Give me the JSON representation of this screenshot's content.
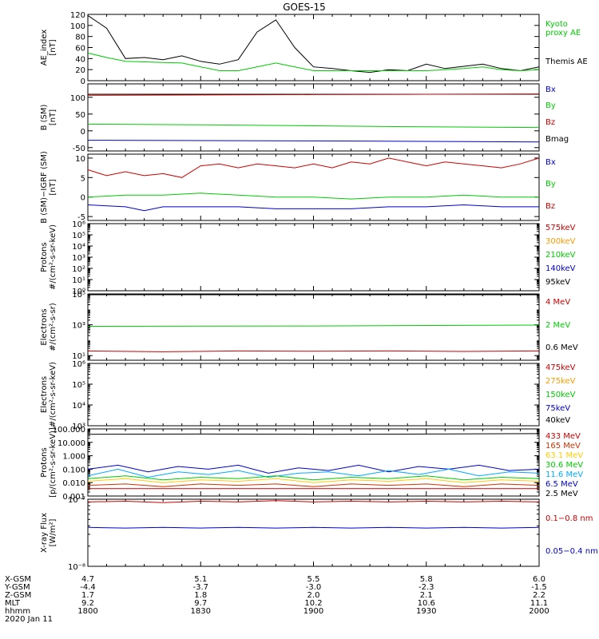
{
  "title": "GOES-15",
  "time_axis": {
    "tick_labels": [
      "1800",
      "1830",
      "1900",
      "1930",
      "2000"
    ],
    "rows": [
      {
        "label": "X-GSM",
        "values": [
          "4.7",
          "5.1",
          "5.5",
          "5.8",
          "6.0"
        ]
      },
      {
        "label": "Y-GSM",
        "values": [
          "-4.4",
          "-3.7",
          "-3.0",
          "-2.3",
          "-1.5"
        ]
      },
      {
        "label": "Z-GSM",
        "values": [
          "1.7",
          "1.8",
          "2.0",
          "2.1",
          "2.2"
        ]
      },
      {
        "label": "MLT",
        "values": [
          "9.2",
          "9.7",
          "10.2",
          "10.6",
          "11.1"
        ]
      },
      {
        "label": "hhmm",
        "values": [
          "1800",
          "1830",
          "1900",
          "1930",
          "2000"
        ]
      }
    ],
    "date": "2020 Jan 11"
  },
  "chart_data": [
    {
      "id": "ae",
      "type": "line",
      "ylabel": "AE_index\n[nT]",
      "yscale": "linear",
      "ylim": [
        0,
        120
      ],
      "ticks": [
        0,
        20,
        40,
        60,
        80,
        100,
        120
      ],
      "tick_labels": [
        "0",
        "20",
        "40",
        "60",
        "80",
        "100",
        "120"
      ],
      "legend": [
        {
          "text": "Kyoto\nproxy AE",
          "color": "#00cc00"
        },
        {
          "text": "Themis AE",
          "color": "#000000"
        }
      ],
      "series": [
        {
          "name": "Themis AE",
          "color": "#000000",
          "x": [
            0,
            5,
            10,
            15,
            20,
            25,
            30,
            35,
            40,
            45,
            50,
            55,
            60,
            65,
            70,
            75,
            80,
            85,
            90,
            95,
            100,
            105,
            110,
            115,
            120
          ],
          "values": [
            118,
            95,
            40,
            42,
            38,
            45,
            35,
            30,
            38,
            88,
            110,
            60,
            25,
            22,
            18,
            15,
            20,
            18,
            30,
            22,
            26,
            30,
            22,
            18,
            25
          ]
        },
        {
          "name": "Kyoto proxy AE",
          "color": "#00cc00",
          "x": [
            0,
            5,
            10,
            15,
            20,
            25,
            30,
            35,
            40,
            45,
            50,
            55,
            60,
            65,
            70,
            75,
            80,
            85,
            90,
            95,
            100,
            105,
            110,
            115,
            120
          ],
          "values": [
            50,
            42,
            35,
            34,
            33,
            32,
            25,
            18,
            18,
            25,
            32,
            25,
            18,
            18,
            18,
            18,
            18,
            18,
            18,
            20,
            22,
            25,
            20,
            18,
            20
          ]
        }
      ]
    },
    {
      "id": "bsm",
      "type": "line",
      "ylabel": "B (SM)\n[nT]",
      "yscale": "linear",
      "ylim": [
        -60,
        140
      ],
      "ticks": [
        -50,
        0,
        50,
        100
      ],
      "tick_labels": [
        "-50",
        "0",
        "50",
        "100"
      ],
      "legend": [
        {
          "text": "Bx",
          "color": "#0000cc"
        },
        {
          "text": "By",
          "color": "#00cc00"
        },
        {
          "text": "Bz",
          "color": "#cc0000"
        },
        {
          "text": "Bmag",
          "color": "#000000"
        }
      ],
      "series": [
        {
          "name": "Bmag",
          "color": "#000000",
          "x": [
            0,
            120
          ],
          "values": [
            109,
            109
          ]
        },
        {
          "name": "Bz",
          "color": "#cc0000",
          "x": [
            0,
            30,
            60,
            90,
            120
          ],
          "values": [
            106,
            107,
            108,
            109,
            110
          ]
        },
        {
          "name": "By",
          "color": "#00cc00",
          "x": [
            0,
            30,
            60,
            90,
            120
          ],
          "values": [
            20,
            18,
            15,
            12,
            10
          ]
        },
        {
          "name": "Bx",
          "color": "#0000cc",
          "x": [
            0,
            60,
            120
          ],
          "values": [
            -28,
            -30,
            -33
          ]
        }
      ]
    },
    {
      "id": "bigrf",
      "type": "line",
      "ylabel": "B (SM)−IGRF (SM)\n[nT]",
      "yscale": "linear",
      "ylim": [
        -6,
        11
      ],
      "ticks": [
        -5,
        0,
        5,
        10
      ],
      "tick_labels": [
        "-5",
        "0",
        "5",
        "10"
      ],
      "legend": [
        {
          "text": "Bx",
          "color": "#0000cc"
        },
        {
          "text": "By",
          "color": "#00cc00"
        },
        {
          "text": "Bz",
          "color": "#cc0000"
        }
      ],
      "series": [
        {
          "name": "Bz",
          "color": "#cc0000",
          "x": [
            0,
            5,
            10,
            15,
            20,
            25,
            30,
            35,
            40,
            45,
            50,
            55,
            60,
            65,
            70,
            75,
            80,
            85,
            90,
            95,
            100,
            105,
            110,
            115,
            120
          ],
          "values": [
            7,
            5.5,
            6.5,
            5.5,
            6,
            5,
            8,
            8.5,
            7.5,
            8.5,
            8,
            7.5,
            8.5,
            7.5,
            9,
            8.5,
            10,
            9,
            8,
            9,
            8.5,
            8,
            7.5,
            8.5,
            10
          ]
        },
        {
          "name": "By",
          "color": "#00cc00",
          "x": [
            0,
            10,
            20,
            30,
            40,
            50,
            60,
            70,
            80,
            90,
            100,
            110,
            120
          ],
          "values": [
            0,
            0.5,
            0.5,
            1,
            0.5,
            0,
            0,
            -0.5,
            0,
            0,
            0.5,
            0,
            0
          ]
        },
        {
          "name": "Bx",
          "color": "#0000cc",
          "x": [
            0,
            10,
            15,
            20,
            30,
            40,
            50,
            60,
            70,
            80,
            90,
            100,
            110,
            120
          ],
          "values": [
            -2,
            -2.5,
            -3.5,
            -2.5,
            -2.5,
            -2.5,
            -3,
            -3,
            -3,
            -2.5,
            -2.5,
            -2,
            -2.5,
            -2.5
          ]
        }
      ]
    },
    {
      "id": "protons_low",
      "type": "line",
      "ylabel": "Protons\n#/(cm²-s-sr-keV)",
      "yscale": "log",
      "ylim": [
        0,
        6
      ],
      "ticks": [
        0,
        1,
        2,
        3,
        4,
        5,
        6
      ],
      "tick_labels": [
        "10⁰",
        "10¹",
        "10²",
        "10³",
        "10⁴",
        "10⁵",
        "10⁶"
      ],
      "legend": [
        {
          "text": "575keV",
          "color": "#cc0000"
        },
        {
          "text": "300keV",
          "color": "#ff9900"
        },
        {
          "text": "210keV",
          "color": "#00cc00"
        },
        {
          "text": "140keV",
          "color": "#0000cc"
        },
        {
          "text": "95keV",
          "color": "#000000"
        }
      ],
      "series": []
    },
    {
      "id": "electrons_mev",
      "type": "line",
      "ylabel": "Electrons\n#/(cm²-s-sr)",
      "yscale": "log",
      "ylim": [
        0.7,
        5
      ],
      "ticks": [
        1,
        3,
        5
      ],
      "tick_labels": [
        "10¹",
        "10³",
        "10⁵"
      ],
      "legend": [
        {
          "text": "4 MeV",
          "color": "#cc0000"
        },
        {
          "text": "2 MeV",
          "color": "#00cc00"
        },
        {
          "text": "0.6 MeV",
          "color": "#000000"
        }
      ],
      "series": [
        {
          "name": "0.6 MeV",
          "color": "#000000",
          "x": [
            0,
            120
          ],
          "values": [
            4.95,
            4.95
          ]
        },
        {
          "name": "2 MeV",
          "color": "#00cc00",
          "x": [
            0,
            60,
            120
          ],
          "values": [
            2.9,
            2.92,
            2.98
          ]
        },
        {
          "name": "4 MeV",
          "color": "#cc0000",
          "x": [
            0,
            20,
            40,
            60,
            80,
            100,
            120
          ],
          "values": [
            1.3,
            1.25,
            1.3,
            1.28,
            1.3,
            1.27,
            1.3
          ]
        }
      ]
    },
    {
      "id": "electrons_kev",
      "type": "line",
      "ylabel": "Electrons\n#/(cm²-s-sr-keV)",
      "yscale": "log",
      "ylim": [
        3,
        6
      ],
      "ticks": [
        3,
        4,
        5,
        6
      ],
      "tick_labels": [
        "10³",
        "10⁴",
        "10⁵",
        "10⁶"
      ],
      "legend": [
        {
          "text": "475keV",
          "color": "#cc0000"
        },
        {
          "text": "275keV",
          "color": "#ff9900"
        },
        {
          "text": "150keV",
          "color": "#00cc00"
        },
        {
          "text": "75keV",
          "color": "#0000cc"
        },
        {
          "text": "40keV",
          "color": "#000000"
        }
      ],
      "series": []
    },
    {
      "id": "protons_mev",
      "type": "line",
      "ylabel": "Protons\n[p/(cm²-s-sr-keV)]",
      "yscale": "log",
      "ylim": [
        -3,
        2
      ],
      "ticks": [
        -3,
        -2,
        -1,
        0,
        1,
        2
      ],
      "tick_labels": [
        "0.001",
        "0.010",
        "0.100",
        "1.000",
        "10.000",
        "100.000"
      ],
      "legend": [
        {
          "text": "433 MeV",
          "color": "#cc0000"
        },
        {
          "text": "165 MeV",
          "color": "#cc3300"
        },
        {
          "text": "63.1 MeV",
          "color": "#ffcc00"
        },
        {
          "text": "30.6 MeV",
          "color": "#00cc00"
        },
        {
          "text": "11.6 MeV",
          "color": "#00aaff"
        },
        {
          "text": "6.5 MeV",
          "color": "#0000cc"
        },
        {
          "text": "2.5 MeV",
          "color": "#000000"
        }
      ],
      "series": [
        {
          "name": "2.5 MeV",
          "color": "#000000",
          "x": [
            0,
            30,
            60,
            90,
            120
          ],
          "values": [
            1.6,
            1.62,
            1.6,
            1.62,
            1.65
          ]
        },
        {
          "name": "6.5 MeV",
          "color": "#0000cc",
          "x": [
            0,
            8,
            16,
            24,
            32,
            40,
            48,
            56,
            64,
            72,
            80,
            88,
            96,
            104,
            112,
            120
          ],
          "values": [
            -1.0,
            -0.7,
            -1.2,
            -0.8,
            -1.0,
            -0.7,
            -1.3,
            -0.9,
            -1.1,
            -0.7,
            -1.2,
            -0.8,
            -1.0,
            -0.7,
            -1.1,
            -1.0
          ]
        },
        {
          "name": "11.6 MeV",
          "color": "#00aaff",
          "x": [
            0,
            8,
            16,
            24,
            32,
            40,
            48,
            56,
            64,
            72,
            80,
            88,
            96,
            104,
            112,
            120
          ],
          "values": [
            -1.5,
            -1.0,
            -1.6,
            -1.2,
            -1.4,
            -1.1,
            -1.6,
            -1.3,
            -1.2,
            -1.5,
            -1.1,
            -1.4,
            -1.0,
            -1.5,
            -1.2,
            -1.3
          ]
        },
        {
          "name": "30.6 MeV",
          "color": "#00cc00",
          "x": [
            0,
            10,
            20,
            30,
            40,
            50,
            60,
            70,
            80,
            90,
            100,
            110,
            120
          ],
          "values": [
            -1.7,
            -1.5,
            -1.8,
            -1.6,
            -1.7,
            -1.5,
            -1.8,
            -1.6,
            -1.7,
            -1.5,
            -1.8,
            -1.6,
            -1.7
          ]
        },
        {
          "name": "63.1 MeV",
          "color": "#ffcc00",
          "x": [
            0,
            10,
            20,
            30,
            40,
            50,
            60,
            70,
            80,
            90,
            100,
            110,
            120
          ],
          "values": [
            -1.9,
            -1.7,
            -2.0,
            -1.8,
            -1.9,
            -1.7,
            -2.0,
            -1.8,
            -1.9,
            -1.7,
            -2.0,
            -1.8,
            -1.9
          ]
        },
        {
          "name": "165 MeV",
          "color": "#cc3300",
          "x": [
            0,
            10,
            20,
            30,
            40,
            50,
            60,
            70,
            80,
            90,
            100,
            110,
            120
          ],
          "values": [
            -2.2,
            -2.1,
            -2.3,
            -2.1,
            -2.2,
            -2.1,
            -2.3,
            -2.1,
            -2.2,
            -2.1,
            -2.3,
            -2.1,
            -2.2
          ]
        },
        {
          "name": "433 MeV",
          "color": "#cc0000",
          "x": [
            0,
            30,
            60,
            90,
            120
          ],
          "values": [
            -2.45,
            -2.45,
            -2.45,
            -2.45,
            -2.45
          ]
        }
      ]
    },
    {
      "id": "xray",
      "type": "line",
      "ylabel": "X-ray Flux\n[W/m²]",
      "yscale": "log",
      "ylim": [
        -8,
        -7
      ],
      "ticks": [
        -8,
        -7
      ],
      "tick_labels": [
        "10⁻⁸",
        "10⁻⁷"
      ],
      "legend": [
        {
          "text": "0.1−0.8 nm",
          "color": "#cc0000"
        },
        {
          "text": "0.05−0.4 nm",
          "color": "#0000cc"
        }
      ],
      "series": [
        {
          "name": "0.1-0.8 nm",
          "color": "#cc0000",
          "x": [
            0,
            10,
            20,
            30,
            40,
            50,
            60,
            70,
            80,
            90,
            100,
            110,
            120
          ],
          "values": [
            -7.04,
            -7.03,
            -7.05,
            -7.03,
            -7.04,
            -7.02,
            -7.04,
            -7.03,
            -7.04,
            -7.03,
            -7.04,
            -7.03,
            -7.04
          ]
        },
        {
          "name": "0.05-0.4 nm",
          "color": "#0000cc",
          "x": [
            0,
            10,
            20,
            30,
            40,
            50,
            60,
            70,
            80,
            90,
            100,
            110,
            120
          ],
          "values": [
            -7.42,
            -7.43,
            -7.42,
            -7.43,
            -7.42,
            -7.43,
            -7.42,
            -7.43,
            -7.42,
            -7.43,
            -7.42,
            -7.43,
            -7.42
          ]
        }
      ]
    }
  ]
}
